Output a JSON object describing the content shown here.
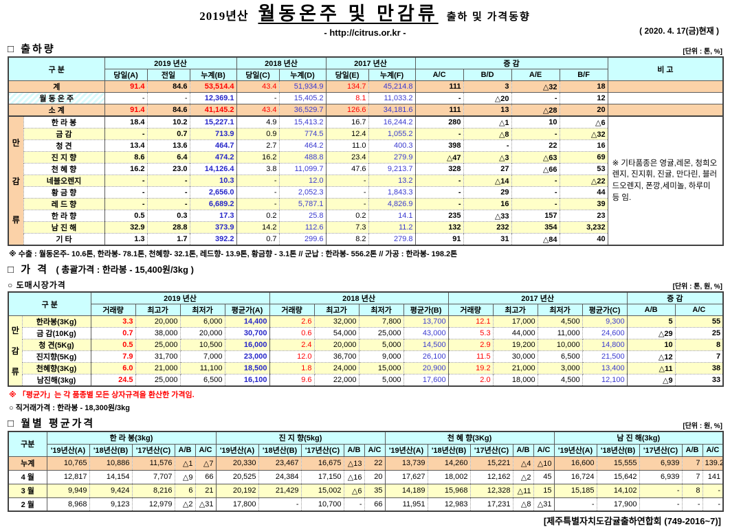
{
  "colors": {
    "header_bg": "#CCFFFF",
    "summary_row_bg": "#FBD2A8",
    "alt_row_bg": "#FFFFC8",
    "quantity_red": "#FF0000",
    "cumulative_blue": "#3939CF"
  },
  "header": {
    "title_prefix": "2019년산",
    "title_main": "월동온주 및 만감류",
    "title_suffix": "출하 및 가격동향",
    "url": "- http://citrus.or.kr -",
    "date_note": "( 2020. 4. 17(금)현재 )"
  },
  "shipment": {
    "section_title": "□ 출하량",
    "unit_label": "[단위 : 톤, %]",
    "header": {
      "gubun": "구    분",
      "y2019": "2019 년산",
      "y2018": "2018 년산",
      "y2017": "2017 년산",
      "change": "증    감",
      "remark": "비 고",
      "subs": [
        "당일(A)",
        "전일",
        "누계(B)",
        "당일(C)",
        "누계(D)",
        "당일(E)",
        "누계(F)",
        "A/C",
        "B/D",
        "A/E",
        "B/F"
      ]
    },
    "summary_rows": [
      {
        "label": "계",
        "values": [
          "91.4",
          "84.6",
          "53,514.4",
          "43.4",
          "51,934.9",
          "134.7",
          "45,214.8",
          "111",
          "3",
          "△32",
          "18"
        ]
      },
      {
        "label": "월 동 온 주",
        "values": [
          "-",
          "-",
          "12,369.1",
          "-",
          "15,405.2",
          "8.1",
          "11,033.2",
          "-",
          "△20",
          "-",
          "12"
        ]
      },
      {
        "label": "소    계",
        "values": [
          "91.4",
          "84.6",
          "41,145.2",
          "43.4",
          "36,529.7",
          "126.6",
          "34,181.6",
          "111",
          "13",
          "△28",
          "20"
        ]
      }
    ],
    "group_label": "만감류",
    "item_rows": [
      {
        "label": "한 라 봉",
        "values": [
          "18.4",
          "10.2",
          "15,227.1",
          "4.9",
          "15,413.2",
          "16.7",
          "16,244.2",
          "280",
          "△1",
          "10",
          "△6"
        ]
      },
      {
        "label": "금    감",
        "values": [
          "-",
          "0.7",
          "713.9",
          "0.9",
          "774.5",
          "12.4",
          "1,055.2",
          "-",
          "△8",
          "-",
          "△32"
        ]
      },
      {
        "label": "청    견",
        "values": [
          "13.4",
          "13.6",
          "464.7",
          "2.7",
          "464.2",
          "11.0",
          "400.3",
          "398",
          "-",
          "22",
          "16"
        ]
      },
      {
        "label": "진 지 향",
        "values": [
          "8.6",
          "6.4",
          "474.2",
          "16.2",
          "488.8",
          "23.4",
          "279.9",
          "△47",
          "△3",
          "△63",
          "69"
        ]
      },
      {
        "label": "천 혜 향",
        "values": [
          "16.2",
          "23.0",
          "14,126.4",
          "3.8",
          "11,099.7",
          "47.6",
          "9,213.7",
          "328",
          "27",
          "△66",
          "53"
        ]
      },
      {
        "label": "네블오렌지",
        "values": [
          "-",
          "-",
          "10.3",
          "-",
          "12.0",
          "-",
          "13.2",
          "-",
          "△14",
          "-",
          "△22"
        ]
      },
      {
        "label": "황 금 향",
        "values": [
          "-",
          "-",
          "2,656.0",
          "-",
          "2,052.3",
          "-",
          "1,843.3",
          "-",
          "29",
          "-",
          "44"
        ]
      },
      {
        "label": "레 드 향",
        "values": [
          "-",
          "-",
          "6,689.2",
          "-",
          "5,787.1",
          "-",
          "4,826.9",
          "-",
          "16",
          "-",
          "39"
        ]
      },
      {
        "label": "한 라 향",
        "values": [
          "0.5",
          "0.3",
          "17.3",
          "0.2",
          "25.8",
          "0.2",
          "14.1",
          "235",
          "△33",
          "157",
          "23"
        ]
      },
      {
        "label": "남 진 해",
        "values": [
          "32.9",
          "28.8",
          "373.9",
          "14.2",
          "112.6",
          "7.3",
          "11.2",
          "132",
          "232",
          "354",
          "3,232"
        ]
      },
      {
        "label": "기    타",
        "values": [
          "1.3",
          "1.7",
          "392.2",
          "0.7",
          "299.6",
          "8.2",
          "279.8",
          "91",
          "31",
          "△84",
          "40"
        ]
      }
    ],
    "remark_note": "※ 기타품종은 영귤,레몬, 청희오렌지, 진지휘, 진귤, 만다린, 블러드오렌지, 폰깡,세미놀, 하루미 등 임."
  },
  "export_note": "※ 수출 : 월동온주- 10.6톤, 한라봉- 78.1톤, 천혜향- 32.1톤, 레드향- 13.9톤, 황금향 - 3.1톤  //  군납 : 한라봉- 556.2톤  //  가공 : 한라봉- 198.2톤",
  "price": {
    "section_title": "□ 가      격",
    "overall_label": "( 총괄가격 : 한라봉 - 15,400원/3kg )",
    "wholesale_title": "○ 도매시장가격",
    "unit_label": "[단위 : 톤, 원, %]",
    "header": {
      "gubun": "구    분",
      "y2019": "2019 년산",
      "y2018": "2018 년산",
      "y2017": "2017 년산",
      "change": "증    감",
      "subs": [
        "거래량",
        "최고가",
        "최저가",
        "평균가(A)",
        "거래량",
        "최고가",
        "최저가",
        "평균가(B)",
        "거래량",
        "최고가",
        "최저가",
        "평균가(C)",
        "A/B",
        "A/C"
      ]
    },
    "group_label": "만감류",
    "rows": [
      {
        "label": "한라봉(3Kg)",
        "values": [
          "3.3",
          "20,000",
          "6,000",
          "14,400",
          "2.6",
          "32,000",
          "7,800",
          "13,700",
          "12.1",
          "17,000",
          "4,500",
          "9,300",
          "5",
          "55"
        ]
      },
      {
        "label": "금  감(10Kg)",
        "values": [
          "0.7",
          "38,000",
          "20,000",
          "30,700",
          "0.6",
          "54,000",
          "25,000",
          "43,000",
          "5.3",
          "44,000",
          "11,000",
          "24,600",
          "△29",
          "25"
        ]
      },
      {
        "label": "청  견(5Kg)",
        "values": [
          "0.5",
          "25,000",
          "10,500",
          "16,000",
          "2.4",
          "20,000",
          "5,000",
          "14,500",
          "2.9",
          "19,200",
          "10,000",
          "14,800",
          "10",
          "8"
        ]
      },
      {
        "label": "진지향(5Kg)",
        "values": [
          "7.9",
          "31,700",
          "7,000",
          "23,000",
          "12.0",
          "36,700",
          "9,000",
          "26,100",
          "11.5",
          "30,000",
          "6,500",
          "21,500",
          "△12",
          "7"
        ]
      },
      {
        "label": "천혜향(3Kg)",
        "values": [
          "6.0",
          "21,000",
          "11,100",
          "18,500",
          "1.8",
          "24,000",
          "15,000",
          "20,900",
          "19.2",
          "21,000",
          "3,000",
          "13,400",
          "△11",
          "38"
        ]
      },
      {
        "label": "남진해(3kg)",
        "values": [
          "24.5",
          "25,000",
          "6,500",
          "16,100",
          "9.6",
          "22,000",
          "5,000",
          "17,600",
          "2.0",
          "18,000",
          "4,500",
          "12,100",
          "△9",
          "33"
        ]
      }
    ],
    "avg_note": "※ 「평균가」는 각 품종별 모든 상자규격을 환산한 가격임.",
    "direct_price": "○ 직거래가격 : 한라봉 - 18,300원/3kg"
  },
  "monthly": {
    "section_title": "□ 월별 평균가격",
    "unit_label": "[단위 : 원, %]",
    "header": {
      "gubun": "구분",
      "groups": [
        "한 라 봉(3kg)",
        "진 지 향(5kg)",
        "천 혜 향(3Kg)",
        "남 진 해(3kg)"
      ],
      "subs": [
        "'19년산(A)",
        "'18년산(B)",
        "'17년산(C)",
        "A/B",
        "A/C"
      ]
    },
    "rows": [
      {
        "label": "누계",
        "values": [
          "10,765",
          "10,886",
          "11,576",
          "△1",
          "△7",
          "20,330",
          "23,467",
          "16,675",
          "△13",
          "22",
          "13,739",
          "14,260",
          "15,221",
          "△4",
          "△10",
          "16,600",
          "15,555",
          "6,939",
          "7",
          "139.2"
        ]
      },
      {
        "label": "4 월",
        "values": [
          "12,817",
          "14,154",
          "7,707",
          "△9",
          "66",
          "20,525",
          "24,384",
          "17,150",
          "△16",
          "20",
          "17,627",
          "18,002",
          "12,162",
          "△2",
          "45",
          "16,724",
          "15,642",
          "6,939",
          "7",
          "141"
        ]
      },
      {
        "label": "3 월",
        "values": [
          "9,949",
          "9,424",
          "8,216",
          "6",
          "21",
          "20,192",
          "21,429",
          "15,002",
          "△6",
          "35",
          "14,189",
          "15,968",
          "12,328",
          "△11",
          "15",
          "15,185",
          "14,102",
          "-",
          "8",
          "-"
        ]
      },
      {
        "label": "2 월",
        "values": [
          "8,968",
          "9,123",
          "12,979",
          "△2",
          "△31",
          "17,800",
          "-",
          "10,700",
          "-",
          "66",
          "11,951",
          "12,983",
          "17,231",
          "△8",
          "△31",
          "-",
          "17,900",
          "-",
          "-",
          "-"
        ]
      }
    ]
  },
  "footer": "[제주특별자치도감귤출하연합회 (749-2016~7)]"
}
